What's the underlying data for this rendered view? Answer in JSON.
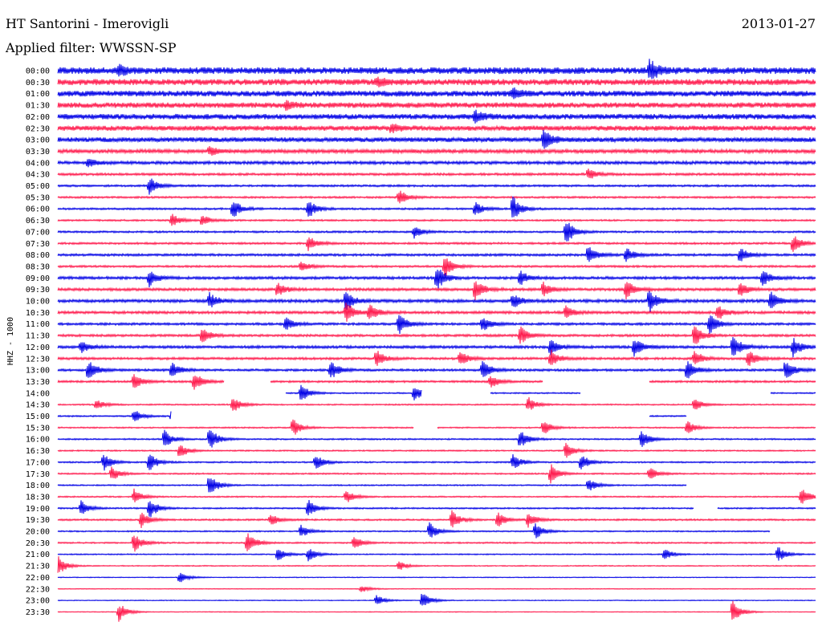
{
  "header": {
    "title": "HT Santorini - Imerovigli",
    "date": "2013-01-27",
    "filter": "Applied filter: WWSSN-SP"
  },
  "chart_data": {
    "type": "line",
    "title": "HT Santorini - Imerovigli",
    "subtitle": "Applied filter: WWSSN-SP",
    "ylabel": "HHZ - 1000",
    "xlabel": "",
    "grid": false,
    "legend": "none",
    "colors": [
      "#0000e6",
      "#ff1a4d"
    ],
    "row_labels": [
      "00:00",
      "00:30",
      "01:00",
      "01:30",
      "02:00",
      "02:30",
      "03:00",
      "03:30",
      "04:00",
      "04:30",
      "05:00",
      "05:30",
      "06:00",
      "06:30",
      "07:00",
      "07:30",
      "08:00",
      "08:30",
      "09:00",
      "09:30",
      "10:00",
      "10:30",
      "11:00",
      "11:30",
      "12:00",
      "12:30",
      "13:00",
      "13:30",
      "14:00",
      "14:30",
      "15:00",
      "15:30",
      "16:00",
      "16:30",
      "17:00",
      "17:30",
      "18:00",
      "18:30",
      "19:00",
      "19:30",
      "20:00",
      "20:30",
      "21:00",
      "21:30",
      "22:00",
      "22:30",
      "23:00",
      "23:30"
    ],
    "noise_level": [
      1.0,
      0.9,
      0.85,
      0.8,
      0.8,
      0.75,
      0.7,
      0.55,
      0.45,
      0.35,
      0.3,
      0.28,
      0.28,
      0.25,
      0.28,
      0.3,
      0.35,
      0.3,
      0.4,
      0.4,
      0.45,
      0.4,
      0.35,
      0.35,
      0.4,
      0.35,
      0.35,
      0.3,
      0.2,
      0.2,
      0.22,
      0.2,
      0.22,
      0.2,
      0.22,
      0.22,
      0.2,
      0.2,
      0.22,
      0.25,
      0.2,
      0.22,
      0.18,
      0.15,
      0.12,
      0.12,
      0.12,
      0.12
    ],
    "events": [
      [
        [
          0.78,
          1.2
        ],
        [
          0.08,
          0.5
        ]
      ],
      [
        [
          0.42,
          0.4
        ]
      ],
      [
        [
          0.6,
          0.5
        ]
      ],
      [
        [
          0.3,
          0.4
        ]
      ],
      [
        [
          0.55,
          0.6
        ]
      ],
      [
        [
          0.44,
          0.4
        ]
      ],
      [
        [
          0.64,
          1.2
        ]
      ],
      [
        [
          0.2,
          0.5
        ]
      ],
      [
        [
          0.04,
          0.4
        ]
      ],
      [
        [
          0.7,
          0.6
        ]
      ],
      [
        [
          0.12,
          1.0
        ]
      ],
      [
        [
          0.45,
          0.8
        ]
      ],
      [
        [
          0.23,
          1.1
        ],
        [
          0.33,
          1.0
        ],
        [
          0.55,
          0.7
        ],
        [
          0.6,
          1.3
        ]
      ],
      [
        [
          0.15,
          0.7
        ],
        [
          0.19,
          0.6
        ]
      ],
      [
        [
          0.47,
          0.6
        ],
        [
          0.67,
          1.3
        ]
      ],
      [
        [
          0.33,
          0.8
        ],
        [
          0.97,
          0.9
        ]
      ],
      [
        [
          0.7,
          1.0
        ],
        [
          0.75,
          0.7
        ],
        [
          0.9,
          0.9
        ]
      ],
      [
        [
          0.32,
          0.6
        ],
        [
          0.51,
          1.1
        ]
      ],
      [
        [
          0.12,
          0.9
        ],
        [
          0.5,
          1.2
        ],
        [
          0.61,
          0.7
        ],
        [
          0.93,
          0.8
        ]
      ],
      [
        [
          0.29,
          0.7
        ],
        [
          0.55,
          1.1
        ],
        [
          0.64,
          0.7
        ],
        [
          0.75,
          0.9
        ],
        [
          0.9,
          0.7
        ]
      ],
      [
        [
          0.2,
          0.8
        ],
        [
          0.38,
          1.0
        ],
        [
          0.6,
          0.8
        ],
        [
          0.78,
          1.2
        ],
        [
          0.94,
          1.0
        ]
      ],
      [
        [
          0.38,
          1.1
        ],
        [
          0.41,
          0.9
        ],
        [
          0.67,
          0.7
        ],
        [
          0.87,
          0.8
        ]
      ],
      [
        [
          0.3,
          0.7
        ],
        [
          0.45,
          1.0
        ],
        [
          0.56,
          0.8
        ],
        [
          0.86,
          1.0
        ]
      ],
      [
        [
          0.19,
          0.8
        ],
        [
          0.61,
          0.9
        ],
        [
          0.84,
          1.1
        ]
      ],
      [
        [
          0.03,
          0.6
        ],
        [
          0.65,
          0.8
        ],
        [
          0.76,
          1.0
        ],
        [
          0.89,
          1.2
        ],
        [
          0.97,
          1.0
        ]
      ],
      [
        [
          0.42,
          0.9
        ],
        [
          0.53,
          0.8
        ],
        [
          0.65,
          0.9
        ],
        [
          0.84,
          0.8
        ],
        [
          0.91,
          0.9
        ]
      ],
      [
        [
          0.04,
          1.0
        ],
        [
          0.15,
          0.8
        ],
        [
          0.36,
          0.9
        ],
        [
          0.56,
          0.9
        ],
        [
          0.83,
          1.0
        ],
        [
          0.96,
          1.1
        ]
      ],
      [
        [
          0.1,
          0.8
        ],
        [
          0.18,
          0.9
        ],
        [
          0.57,
          0.7
        ]
      ],
      [
        [
          0.32,
          1.0
        ],
        [
          0.47,
          0.8
        ]
      ],
      [
        [
          0.05,
          0.6
        ],
        [
          0.23,
          0.9
        ],
        [
          0.62,
          0.8
        ],
        [
          0.84,
          0.6
        ]
      ],
      [
        [
          0.1,
          0.7
        ],
        [
          0.15,
          0.8
        ]
      ],
      [
        [
          0.31,
          0.9
        ],
        [
          0.64,
          0.8
        ],
        [
          0.83,
          0.7
        ]
      ],
      [
        [
          0.14,
          1.0
        ],
        [
          0.2,
          1.2
        ],
        [
          0.61,
          0.9
        ],
        [
          0.77,
          0.9
        ]
      ],
      [
        [
          0.16,
          0.8
        ],
        [
          0.67,
          0.8
        ]
      ],
      [
        [
          0.06,
          0.9
        ],
        [
          0.12,
          1.0
        ],
        [
          0.34,
          0.8
        ],
        [
          0.6,
          0.8
        ],
        [
          0.69,
          0.9
        ]
      ],
      [
        [
          0.07,
          0.8
        ],
        [
          0.65,
          1.0
        ],
        [
          0.78,
          0.7
        ]
      ],
      [
        [
          0.2,
          1.1
        ],
        [
          0.7,
          0.7
        ]
      ],
      [
        [
          0.1,
          0.8
        ],
        [
          0.38,
          0.7
        ],
        [
          0.98,
          1.0
        ]
      ],
      [
        [
          0.03,
          0.8
        ],
        [
          0.12,
          1.1
        ],
        [
          0.33,
          0.9
        ]
      ],
      [
        [
          0.11,
          0.8
        ],
        [
          0.28,
          0.7
        ],
        [
          0.52,
          0.9
        ],
        [
          0.58,
          0.8
        ],
        [
          0.62,
          0.8
        ]
      ],
      [
        [
          0.32,
          0.7
        ],
        [
          0.49,
          0.9
        ],
        [
          0.63,
          0.8
        ]
      ],
      [
        [
          0.1,
          1.0
        ],
        [
          0.25,
          1.1
        ],
        [
          0.39,
          0.8
        ]
      ],
      [
        [
          0.29,
          0.7
        ],
        [
          0.33,
          0.7
        ],
        [
          0.8,
          0.6
        ],
        [
          0.95,
          0.8
        ]
      ],
      [
        [
          0.0,
          1.0
        ],
        [
          0.45,
          0.5
        ]
      ],
      [
        [
          0.16,
          0.6
        ]
      ],
      [
        [
          0.4,
          0.4
        ]
      ],
      [
        [
          0.42,
          0.6
        ],
        [
          0.48,
          1.0
        ]
      ],
      [
        [
          0.08,
          1.0
        ],
        [
          0.89,
          1.3
        ]
      ]
    ],
    "gaps": [
      [],
      [],
      [],
      [],
      [],
      [],
      [],
      [],
      [],
      [],
      [],
      [],
      [],
      [],
      [],
      [],
      [],
      [],
      [],
      [],
      [],
      [],
      [],
      [],
      [],
      [],
      [],
      [
        [
          0.22,
          0.28
        ],
        [
          0.64,
          0.78
        ]
      ],
      [
        [
          0.0,
          0.3
        ],
        [
          0.48,
          0.57
        ],
        [
          0.69,
          0.94
        ]
      ],
      [],
      [
        [
          0.15,
          0.78
        ],
        [
          0.83,
          1.0
        ]
      ],
      [
        [
          0.47,
          0.5
        ]
      ],
      [],
      [],
      [],
      [],
      [
        [
          0.83,
          1.0
        ]
      ],
      [],
      [
        [
          0.84,
          0.87
        ]
      ],
      [],
      [
        [
          0.94,
          1.0
        ]
      ],
      [],
      [],
      [],
      [],
      [],
      [],
      []
    ]
  }
}
